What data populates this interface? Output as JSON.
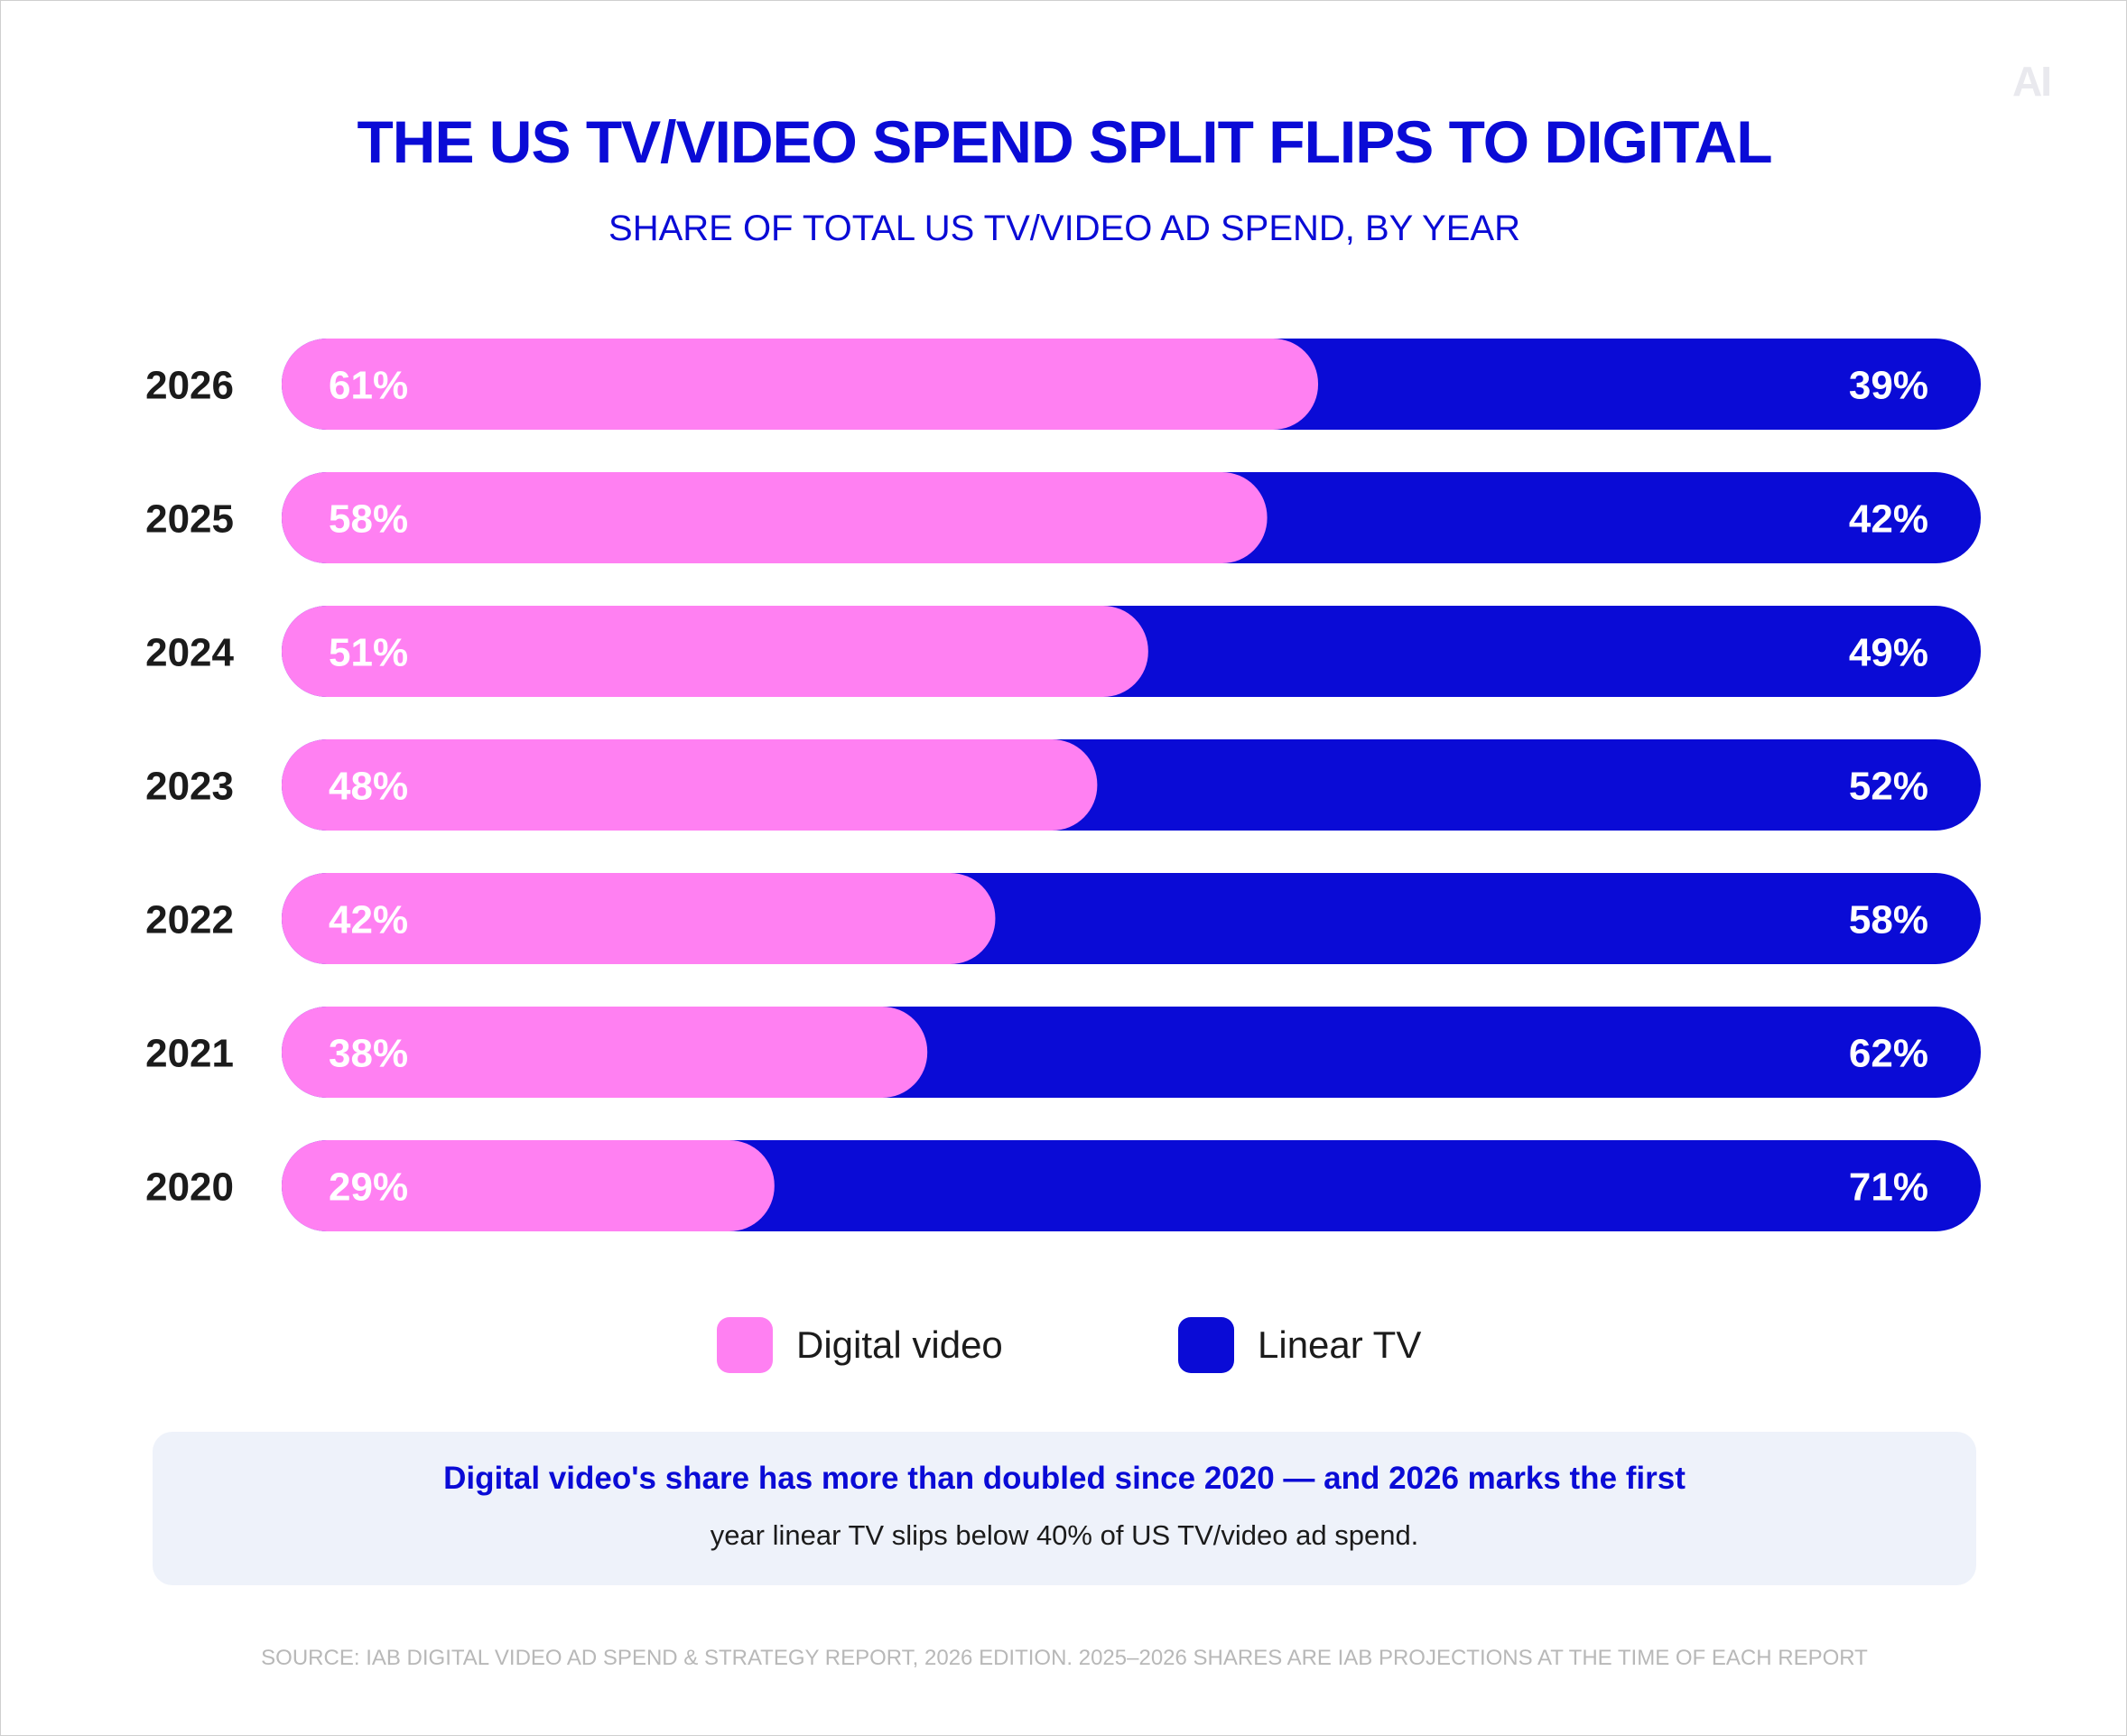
{
  "header": {
    "logo": "AI",
    "title": "THE US TV/VIDEO SPEND SPLIT FLIPS TO DIGITAL",
    "subtitle": "SHARE OF TOTAL US TV/VIDEO AD SPEND, BY YEAR"
  },
  "legend": {
    "digital_label": "Digital video",
    "linear_label": "Linear TV"
  },
  "callout": {
    "line1": "Digital video's share has more than doubled since 2020 — and 2026 marks the first",
    "line2": "year linear TV slips below 40% of US TV/video ad spend."
  },
  "source": "SOURCE: IAB DIGITAL VIDEO AD SPEND & STRATEGY REPORT, 2026 EDITION. 2025–2026 SHARES ARE IAB PROJECTIONS AT THE TIME OF EACH REPORT",
  "colors": {
    "digital": "#ff80f2",
    "linear": "#0a0bd6",
    "title": "#0a0bd6"
  },
  "chart_data": {
    "type": "bar",
    "orientation": "horizontal",
    "stacked": true,
    "percent_stacked": true,
    "categories": [
      "2026",
      "2025",
      "2024",
      "2023",
      "2022",
      "2021",
      "2020"
    ],
    "value_labels": {
      "Digital video": [
        "61%",
        "58%",
        "51%",
        "48%",
        "42%",
        "38%",
        "29%"
      ],
      "Linear TV": [
        "39%",
        "42%",
        "49%",
        "52%",
        "58%",
        "62%",
        "71%"
      ]
    },
    "series": [
      {
        "name": "Digital video",
        "values": [
          61,
          58,
          51,
          48,
          42,
          38,
          29
        ]
      },
      {
        "name": "Linear TV",
        "values": [
          39,
          42,
          49,
          52,
          58,
          62,
          71
        ]
      }
    ],
    "xlim": [
      0,
      100
    ],
    "grid": false,
    "legend_position": "bottom-center"
  }
}
